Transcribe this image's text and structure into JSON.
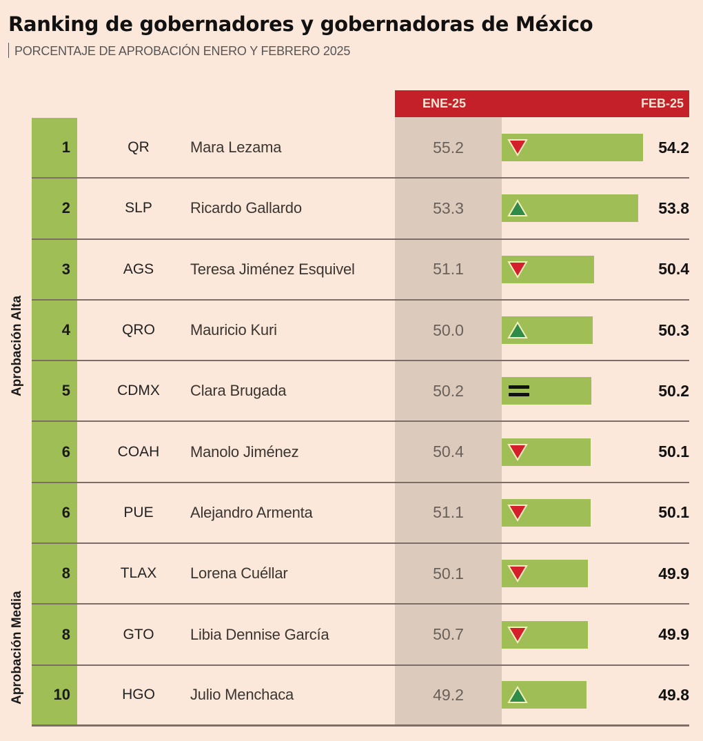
{
  "header": {
    "title": "Ranking de gobernadores y gobernadoras de México",
    "subtitle": "PORCENTAJE DE APROBACIÓN ENERO Y FEBRERO 2025"
  },
  "columns": {
    "ene_label": "ENE-25",
    "feb_label": "FEB-25"
  },
  "groups": {
    "alta": "Aprobación Alta",
    "media": "Aprobación Media"
  },
  "colors": {
    "background": "#fce8da",
    "header_red": "#c4202a",
    "bar_green": "#9fbe55",
    "ene_column": "#dccabd",
    "trend_down": "#d4202a",
    "trend_up": "#2e8b4a"
  },
  "rows": [
    {
      "rank": "1",
      "state": "QR",
      "name": "Mara Lezama",
      "ene": "55.2",
      "feb": "54.2",
      "trend": "down"
    },
    {
      "rank": "2",
      "state": "SLP",
      "name": "Ricardo Gallardo",
      "ene": "53.3",
      "feb": "53.8",
      "trend": "up"
    },
    {
      "rank": "3",
      "state": "AGS",
      "name": "Teresa Jiménez Esquivel",
      "ene": "51.1",
      "feb": "50.4",
      "trend": "down"
    },
    {
      "rank": "4",
      "state": "QRO",
      "name": "Mauricio Kuri",
      "ene": "50.0",
      "feb": "50.3",
      "trend": "up"
    },
    {
      "rank": "5",
      "state": "CDMX",
      "name": "Clara Brugada",
      "ene": "50.2",
      "feb": "50.2",
      "trend": "equal"
    },
    {
      "rank": "6",
      "state": "COAH",
      "name": "Manolo Jiménez",
      "ene": "50.4",
      "feb": "50.1",
      "trend": "down"
    },
    {
      "rank": "6",
      "state": "PUE",
      "name": "Alejandro Armenta",
      "ene": "51.1",
      "feb": "50.1",
      "trend": "down"
    },
    {
      "rank": "8",
      "state": "TLAX",
      "name": "Lorena Cuéllar",
      "ene": "50.1",
      "feb": "49.9",
      "trend": "down"
    },
    {
      "rank": "8",
      "state": "GTO",
      "name": "Libia Dennise García",
      "ene": "50.7",
      "feb": "49.9",
      "trend": "down"
    },
    {
      "rank": "10",
      "state": "HGO",
      "name": "Julio Menchaca",
      "ene": "49.2",
      "feb": "49.8",
      "trend": "up"
    }
  ],
  "chart_data": {
    "type": "bar",
    "title": "Ranking de gobernadores y gobernadoras de México",
    "subtitle": "PORCENTAJE DE APROBACIÓN ENERO Y FEBRERO 2025",
    "orientation": "horizontal",
    "categories": [
      "Mara Lezama (QR)",
      "Ricardo Gallardo (SLP)",
      "Teresa Jiménez Esquivel (AGS)",
      "Mauricio Kuri (QRO)",
      "Clara Brugada (CDMX)",
      "Manolo Jiménez (COAH)",
      "Alejandro Armenta (PUE)",
      "Lorena Cuéllar (TLAX)",
      "Libia Dennise García (GTO)",
      "Julio Menchaca (HGO)"
    ],
    "ranks": [
      1,
      2,
      3,
      4,
      5,
      6,
      6,
      8,
      8,
      10
    ],
    "series": [
      {
        "name": "ENE-25",
        "values": [
          55.2,
          53.3,
          51.1,
          50.0,
          50.2,
          50.4,
          51.1,
          50.1,
          50.7,
          49.2
        ]
      },
      {
        "name": "FEB-25",
        "values": [
          54.2,
          53.8,
          50.4,
          50.3,
          50.2,
          50.1,
          50.1,
          49.9,
          49.9,
          49.8
        ]
      }
    ],
    "trend": [
      "down",
      "up",
      "down",
      "up",
      "equal",
      "down",
      "down",
      "down",
      "down",
      "up"
    ],
    "groups": [
      {
        "label": "Aprobación Alta",
        "rank_range": [
          1,
          5
        ]
      },
      {
        "label": "Aprobación Media",
        "rank_range": [
          6,
          10
        ]
      }
    ],
    "xlabel": "",
    "ylabel": "",
    "legend": false,
    "grid": false
  }
}
